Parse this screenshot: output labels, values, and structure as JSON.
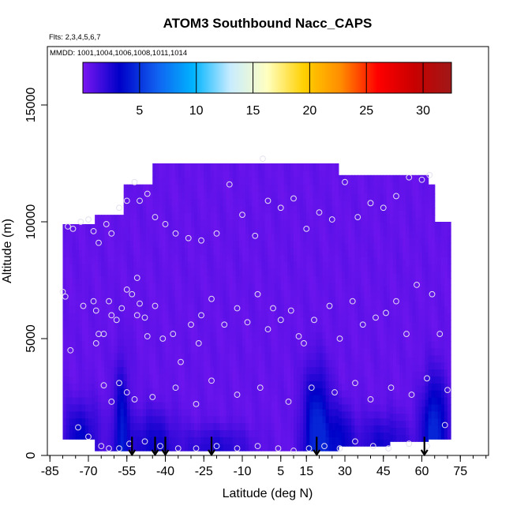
{
  "chart_data": {
    "type": "heatmap",
    "title": "ATOM3 Southbound Nacc_CAPS",
    "annotations": [
      "Flts: 2,3,4,5,6,7",
      "MMDD: 1001,1004,1006,1008,1011,1014"
    ],
    "xlabel": "Latitude (deg N)",
    "ylabel": "Altitude (m)",
    "xlim": [
      -86,
      86
    ],
    "ylim": [
      0,
      17500
    ],
    "x_ticks": [
      -85,
      -70,
      -55,
      -40,
      -25,
      -10,
      5,
      15,
      30,
      45,
      60,
      75
    ],
    "x_tick_labels": [
      "-85",
      "-70",
      "-55",
      "-40",
      "-25",
      "-10",
      "5",
      "15",
      "30",
      "45",
      "60",
      "75"
    ],
    "x_minor_step": 5,
    "y_ticks": [
      0,
      5000,
      10000,
      15000
    ],
    "y_tick_labels": [
      "0",
      "5000",
      "10000",
      "15000"
    ],
    "colorbar": {
      "range": [
        0,
        32.5
      ],
      "ticks": [
        5,
        10,
        15,
        20,
        25,
        30
      ],
      "tick_labels": [
        "5",
        "10",
        "15",
        "20",
        "25",
        "30"
      ],
      "colors": [
        "#7a17f2",
        "#0000c8",
        "#1060f0",
        "#00b4ff",
        "#c8ecff",
        "#ffffc0",
        "#ffd000",
        "#ff8c00",
        "#ff0000",
        "#c80000",
        "#a01818"
      ]
    },
    "field": {
      "background_value": 0.6,
      "value_range": [
        0,
        4.5
      ],
      "coverage": [
        {
          "lat": [
            -80,
            -68
          ],
          "alt": [
            700,
            9900
          ]
        },
        {
          "lat": [
            -68,
            -56
          ],
          "alt": [
            200,
            10300
          ]
        },
        {
          "lat": [
            -56,
            -45
          ],
          "alt": [
            200,
            11600
          ]
        },
        {
          "lat": [
            -45,
            27
          ],
          "alt": [
            200,
            12500
          ]
        },
        {
          "lat": [
            27,
            48
          ],
          "alt": [
            400,
            12000
          ]
        },
        {
          "lat": [
            48,
            62
          ],
          "alt": [
            600,
            12000
          ]
        },
        {
          "lat": [
            62,
            65
          ],
          "alt": [
            700,
            11600
          ]
        },
        {
          "lat": [
            65,
            71
          ],
          "alt": [
            700,
            10000
          ]
        }
      ],
      "enhanced_regions": [
        {
          "lat_center": -57,
          "lat_halfwidth": 3.5,
          "top": 4000,
          "value": 3.3
        },
        {
          "lat_center": -73,
          "lat_halfwidth": 8,
          "top": 2300,
          "value": 2.8
        },
        {
          "lat_center": -45,
          "lat_halfwidth": 10,
          "top": 2000,
          "value": 2.4
        },
        {
          "lat_center": 19,
          "lat_halfwidth": 6,
          "top": 3800,
          "value": 4.3
        },
        {
          "lat_center": 28,
          "lat_halfwidth": 6,
          "top": 2200,
          "value": 2.6
        },
        {
          "lat_center": 65,
          "lat_halfwidth": 5.5,
          "top": 3500,
          "value": 4.4
        },
        {
          "lat_center": 45,
          "lat_halfwidth": 12,
          "top": 1800,
          "value": 2.2
        },
        {
          "lat_center": -20,
          "lat_halfwidth": 15,
          "top": 1300,
          "value": 1.9
        }
      ]
    },
    "sample_points": [
      [
        -80,
        7000
      ],
      [
        -79,
        6800
      ],
      [
        -77,
        4500
      ],
      [
        -72,
        6400
      ],
      [
        -68,
        6600
      ],
      [
        -67,
        6200
      ],
      [
        -67,
        4800
      ],
      [
        -66,
        5200
      ],
      [
        -64,
        5200
      ],
      [
        -62,
        6600
      ],
      [
        -61,
        6000
      ],
      [
        -59,
        5800
      ],
      [
        -57,
        6300
      ],
      [
        -55,
        7100
      ],
      [
        -53,
        6900
      ],
      [
        -51,
        6000
      ],
      [
        -51,
        7600
      ],
      [
        -50,
        6500
      ],
      [
        -48,
        5900
      ],
      [
        -47,
        5100
      ],
      [
        -44,
        6400
      ],
      [
        -41,
        5000
      ],
      [
        -37,
        5200
      ],
      [
        -34,
        4000
      ],
      [
        -30,
        5600
      ],
      [
        -27,
        4800
      ],
      [
        -26,
        6000
      ],
      [
        -22,
        6700
      ],
      [
        -17,
        5600
      ],
      [
        -12,
        6300
      ],
      [
        -8,
        5700
      ],
      [
        -4,
        6900
      ],
      [
        0,
        5400
      ],
      [
        2,
        6300
      ],
      [
        5,
        5800
      ],
      [
        9,
        6200
      ],
      [
        12,
        5100
      ],
      [
        14,
        4800
      ],
      [
        18,
        5800
      ],
      [
        24,
        6400
      ],
      [
        28,
        5000
      ],
      [
        33,
        6600
      ],
      [
        37,
        5600
      ],
      [
        42,
        5900
      ],
      [
        46,
        6100
      ],
      [
        50,
        6600
      ],
      [
        54,
        5200
      ],
      [
        58,
        7300
      ],
      [
        64,
        6900
      ],
      [
        67,
        5200
      ],
      [
        -78,
        9800
      ],
      [
        -76,
        9700
      ],
      [
        -73,
        10000
      ],
      [
        -70,
        10100
      ],
      [
        -68,
        9600
      ],
      [
        -66,
        9100
      ],
      [
        -63,
        9900
      ],
      [
        -61,
        9500
      ],
      [
        -58,
        10600
      ],
      [
        -55,
        10900
      ],
      [
        -52,
        11700
      ],
      [
        -50,
        10900
      ],
      [
        -47,
        11200
      ],
      [
        -44,
        10200
      ],
      [
        -40,
        9900
      ],
      [
        -36,
        9500
      ],
      [
        -31,
        9300
      ],
      [
        -26,
        9200
      ],
      [
        -20,
        9500
      ],
      [
        -15,
        11600
      ],
      [
        -10,
        10300
      ],
      [
        -5,
        9400
      ],
      [
        0,
        10900
      ],
      [
        5,
        10600
      ],
      [
        10,
        11000
      ],
      [
        15,
        9700
      ],
      [
        20,
        10400
      ],
      [
        25,
        10100
      ],
      [
        30,
        11700
      ],
      [
        35,
        10200
      ],
      [
        40,
        10800
      ],
      [
        45,
        10600
      ],
      [
        50,
        11100
      ],
      [
        55,
        11900
      ],
      [
        60,
        11800
      ],
      [
        63,
        12000
      ],
      [
        -64,
        3000
      ],
      [
        -61,
        2300
      ],
      [
        -58,
        3100
      ],
      [
        -55,
        2700
      ],
      [
        -52,
        2400
      ],
      [
        -45,
        2500
      ],
      [
        -36,
        2900
      ],
      [
        -28,
        2200
      ],
      [
        -22,
        3200
      ],
      [
        -12,
        2600
      ],
      [
        -3,
        2900
      ],
      [
        8,
        2300
      ],
      [
        17,
        2900
      ],
      [
        26,
        2700
      ],
      [
        34,
        3100
      ],
      [
        40,
        2400
      ],
      [
        48,
        2900
      ],
      [
        56,
        2600
      ],
      [
        62,
        3300
      ],
      [
        -74,
        1200
      ],
      [
        -70,
        800
      ],
      [
        -65,
        400
      ],
      [
        -62,
        300
      ],
      [
        -58,
        300
      ],
      [
        -54,
        500
      ],
      [
        -48,
        600
      ],
      [
        -42,
        400
      ],
      [
        -35,
        300
      ],
      [
        -28,
        300
      ],
      [
        -20,
        400
      ],
      [
        -12,
        300
      ],
      [
        -4,
        400
      ],
      [
        4,
        300
      ],
      [
        10,
        200
      ],
      [
        16,
        300
      ],
      [
        22,
        400
      ],
      [
        28,
        300
      ],
      [
        34,
        600
      ],
      [
        41,
        400
      ],
      [
        47,
        300
      ],
      [
        55,
        500
      ],
      [
        62,
        400
      ],
      [
        69,
        1300
      ],
      [
        70,
        2800
      ],
      [
        -2,
        12700
      ]
    ],
    "markers": {
      "type": "arrow",
      "lats": [
        -53,
        -44,
        -40,
        -22,
        19,
        61
      ],
      "tops": [
        800,
        800,
        800,
        800,
        800,
        800
      ]
    }
  }
}
